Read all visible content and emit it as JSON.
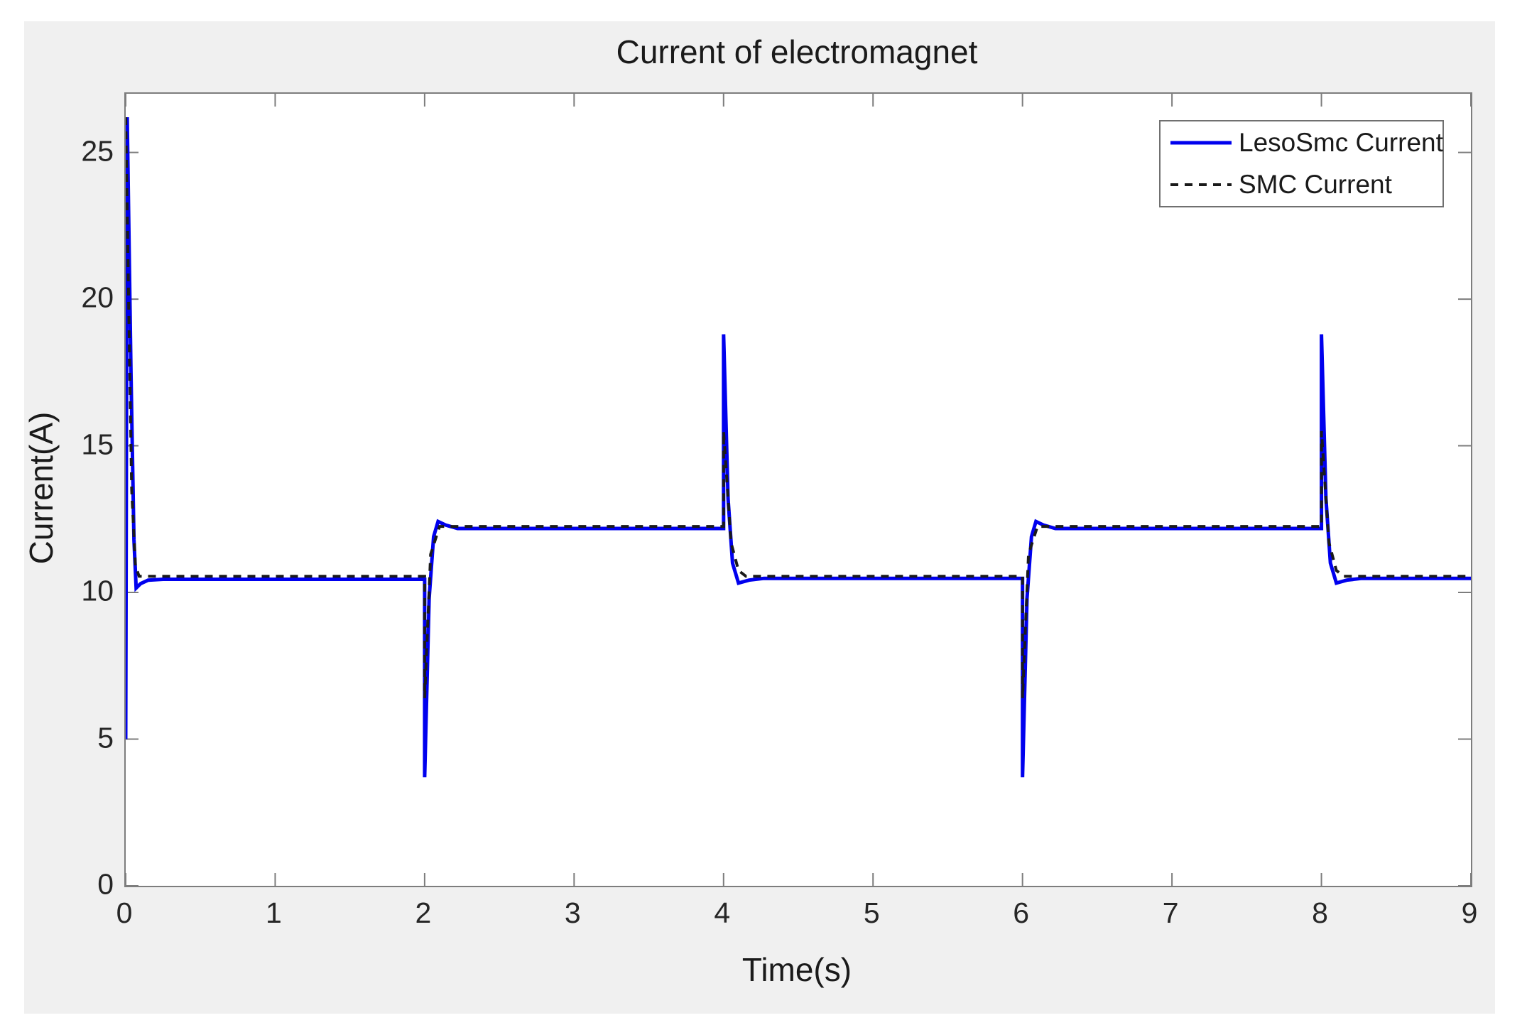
{
  "chart_data": {
    "type": "line",
    "title": "Current of electromagnet",
    "xlabel": "Time(s)",
    "ylabel": "Current(A)",
    "xlim": [
      0,
      9
    ],
    "ylim": [
      0,
      27
    ],
    "xticks": [
      0,
      1,
      2,
      3,
      4,
      5,
      6,
      7,
      8,
      9
    ],
    "yticks": [
      0,
      5,
      10,
      15,
      20,
      25
    ],
    "grid": false,
    "legend_position": "top-right",
    "series": [
      {
        "name": "LesoSmc Current",
        "color": "#0000ee",
        "style": "solid",
        "points": [
          [
            0,
            5.0
          ],
          [
            0.01,
            26.2
          ],
          [
            0.035,
            17.5
          ],
          [
            0.055,
            11.8
          ],
          [
            0.07,
            10.15
          ],
          [
            0.1,
            10.3
          ],
          [
            0.15,
            10.42
          ],
          [
            0.25,
            10.45
          ],
          [
            2,
            10.45
          ],
          [
            2,
            3.7
          ],
          [
            2.03,
            9.8
          ],
          [
            2.06,
            11.9
          ],
          [
            2.09,
            12.42
          ],
          [
            2.14,
            12.3
          ],
          [
            2.22,
            12.18
          ],
          [
            4,
            12.18
          ],
          [
            4,
            18.8
          ],
          [
            4.03,
            13.2
          ],
          [
            4.06,
            11.0
          ],
          [
            4.1,
            10.32
          ],
          [
            4.17,
            10.42
          ],
          [
            4.27,
            10.48
          ],
          [
            6,
            10.48
          ],
          [
            6,
            3.7
          ],
          [
            6.03,
            9.8
          ],
          [
            6.06,
            11.9
          ],
          [
            6.09,
            12.42
          ],
          [
            6.14,
            12.3
          ],
          [
            6.22,
            12.18
          ],
          [
            8,
            12.18
          ],
          [
            8,
            18.8
          ],
          [
            8.03,
            13.2
          ],
          [
            8.06,
            11.0
          ],
          [
            8.1,
            10.32
          ],
          [
            8.17,
            10.42
          ],
          [
            8.27,
            10.48
          ],
          [
            9,
            10.48
          ]
        ]
      },
      {
        "name": "SMC Current",
        "color": "#1a1a1a",
        "style": "dashed",
        "points": [
          [
            0,
            26.2
          ],
          [
            0.04,
            13.5
          ],
          [
            0.065,
            10.9
          ],
          [
            0.09,
            10.55
          ],
          [
            2,
            10.55
          ],
          [
            2,
            6.4
          ],
          [
            2.04,
            11.3
          ],
          [
            2.1,
            12.25
          ],
          [
            4,
            12.25
          ],
          [
            4,
            15.5
          ],
          [
            4.05,
            11.7
          ],
          [
            4.1,
            10.75
          ],
          [
            4.15,
            10.55
          ],
          [
            6,
            10.55
          ],
          [
            6,
            6.4
          ],
          [
            6.04,
            11.3
          ],
          [
            6.1,
            12.25
          ],
          [
            8,
            12.25
          ],
          [
            8,
            15.5
          ],
          [
            8.05,
            11.7
          ],
          [
            8.1,
            10.75
          ],
          [
            8.15,
            10.55
          ],
          [
            9,
            10.55
          ]
        ]
      }
    ]
  },
  "legend": {
    "entries": [
      {
        "label": "LesoSmc Current"
      },
      {
        "label": "SMC Current"
      }
    ]
  },
  "colors": {
    "figure_background": "#f0f0f0",
    "plot_background": "#ffffff",
    "axis_frame": "#7d7d7d",
    "tick": "#7d7d7d",
    "series_blue": "#0000ee",
    "series_black": "#1a1a1a"
  }
}
